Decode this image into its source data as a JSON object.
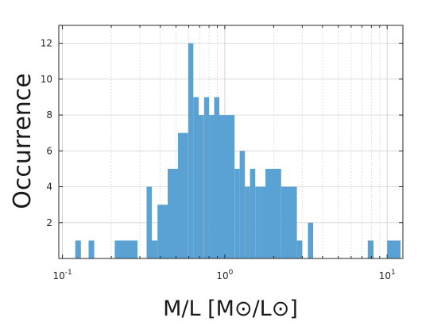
{
  "chart_data": {
    "type": "bar",
    "xscale": "log",
    "xlim": [
      0.095,
      12.5
    ],
    "ylim": [
      0,
      13
    ],
    "grid": true,
    "bar_color": "#5aa2d3",
    "ylabel": "Occurrence",
    "xlabel": "M/L [M⊙/L⊙]",
    "y_ticks": [
      2,
      4,
      6,
      8,
      10,
      12
    ],
    "x_ticks": [
      {
        "value": 0.1,
        "base": "10",
        "exp": "-1"
      },
      {
        "value": 1,
        "base": "10",
        "exp": "0"
      },
      {
        "value": 10,
        "base": "10",
        "exp": "1"
      }
    ],
    "bins": [
      {
        "lo": 0.12,
        "hi": 0.13,
        "count": 1
      },
      {
        "lo": 0.145,
        "hi": 0.157,
        "count": 1
      },
      {
        "lo": 0.21,
        "hi": 0.29,
        "count": 1
      },
      {
        "lo": 0.33,
        "hi": 0.355,
        "count": 4
      },
      {
        "lo": 0.355,
        "hi": 0.385,
        "count": 1
      },
      {
        "lo": 0.385,
        "hi": 0.445,
        "count": 3
      },
      {
        "lo": 0.445,
        "hi": 0.515,
        "count": 5
      },
      {
        "lo": 0.515,
        "hi": 0.595,
        "count": 7
      },
      {
        "lo": 0.595,
        "hi": 0.64,
        "count": 12
      },
      {
        "lo": 0.64,
        "hi": 0.69,
        "count": 9
      },
      {
        "lo": 0.69,
        "hi": 0.745,
        "count": 8
      },
      {
        "lo": 0.745,
        "hi": 0.8,
        "count": 9
      },
      {
        "lo": 0.8,
        "hi": 0.86,
        "count": 8
      },
      {
        "lo": 0.86,
        "hi": 0.925,
        "count": 9
      },
      {
        "lo": 0.925,
        "hi": 0.995,
        "count": 8
      },
      {
        "lo": 0.995,
        "hi": 1.15,
        "count": 8
      },
      {
        "lo": 1.15,
        "hi": 1.235,
        "count": 5
      },
      {
        "lo": 1.235,
        "hi": 1.33,
        "count": 6
      },
      {
        "lo": 1.33,
        "hi": 1.43,
        "count": 4
      },
      {
        "lo": 1.43,
        "hi": 1.54,
        "count": 5
      },
      {
        "lo": 1.54,
        "hi": 1.655,
        "count": 4
      },
      {
        "lo": 1.655,
        "hi": 1.78,
        "count": 4
      },
      {
        "lo": 1.78,
        "hi": 2.225,
        "count": 5
      },
      {
        "lo": 2.225,
        "hi": 2.78,
        "count": 4
      },
      {
        "lo": 2.78,
        "hi": 3.0,
        "count": 1
      },
      {
        "lo": 3.25,
        "hi": 3.5,
        "count": 2
      },
      {
        "lo": 7.6,
        "hi": 8.25,
        "count": 1
      },
      {
        "lo": 10.0,
        "hi": 12.1,
        "count": 1
      }
    ]
  }
}
